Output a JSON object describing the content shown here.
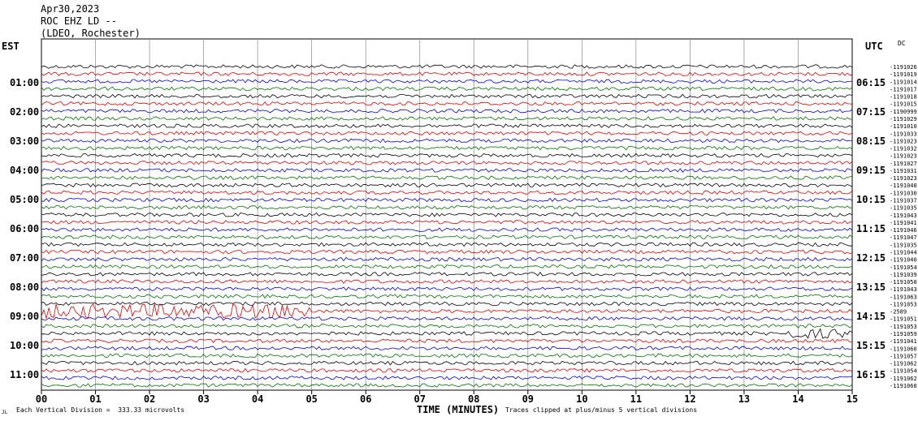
{
  "header": {
    "line1": "Apr30,2023",
    "line2": "ROC EHZ LD --",
    "line3": "(LDEO, Rochester)"
  },
  "left_zone": "EST",
  "right_zone": "UTC",
  "dc_label": "DC",
  "footer": {
    "xlabel": "TIME (MINUTES)",
    "scale_note": "Each Vertical Division =  333.33 microvolts",
    "clip_note": "Traces clipped at plus/minus 5 vertical divisions",
    "mark": "JL"
  },
  "chart_data": {
    "type": "line",
    "title": "ROC EHZ LD --",
    "xlabel": "TIME (MINUTES)",
    "xlim": [
      0,
      15
    ],
    "x_ticks": [
      "00",
      "01",
      "02",
      "03",
      "04",
      "05",
      "06",
      "07",
      "08",
      "09",
      "10",
      "11",
      "12",
      "13",
      "14",
      "15"
    ],
    "est_labels": [
      "01:00",
      "02:00",
      "03:00",
      "04:00",
      "05:00",
      "06:00",
      "07:00",
      "08:00",
      "09:00",
      "10:00",
      "11:00"
    ],
    "utc_labels": [
      "06:15",
      "07:15",
      "08:15",
      "09:15",
      "10:15",
      "11:15",
      "12:15",
      "13:15",
      "14:15",
      "15:15",
      "16:15"
    ],
    "trace_colors": [
      "#000000",
      "#e00000",
      "#0000e0",
      "#007000"
    ],
    "dc_offsets": [
      "-1191026",
      "-1191019",
      "-1191014",
      "-1191017",
      "-1191018",
      "-1191015",
      "-1190999",
      "-1191029",
      "-1191010",
      "-1191033",
      "-1191023",
      "-1191032",
      "-1191023",
      "-1191027",
      "-1191031",
      "-1191023",
      "-1191040",
      "-1191030",
      "-1191037",
      "-1191035",
      "-1191043",
      "-1191041",
      "-1191046",
      "-1191047",
      "-1191035",
      "-1191044",
      "-1191040",
      "-1191054",
      "-1191039",
      "-1191050",
      "-1191043",
      "-1191063",
      "-1191053",
      "-2589",
      "-1191051",
      "-1191053",
      "-1191059",
      "-1191041",
      "-1191060",
      "-1191057",
      "-1191062",
      "-1191054",
      "-1191062",
      "-1191060"
    ],
    "grid": true
  }
}
